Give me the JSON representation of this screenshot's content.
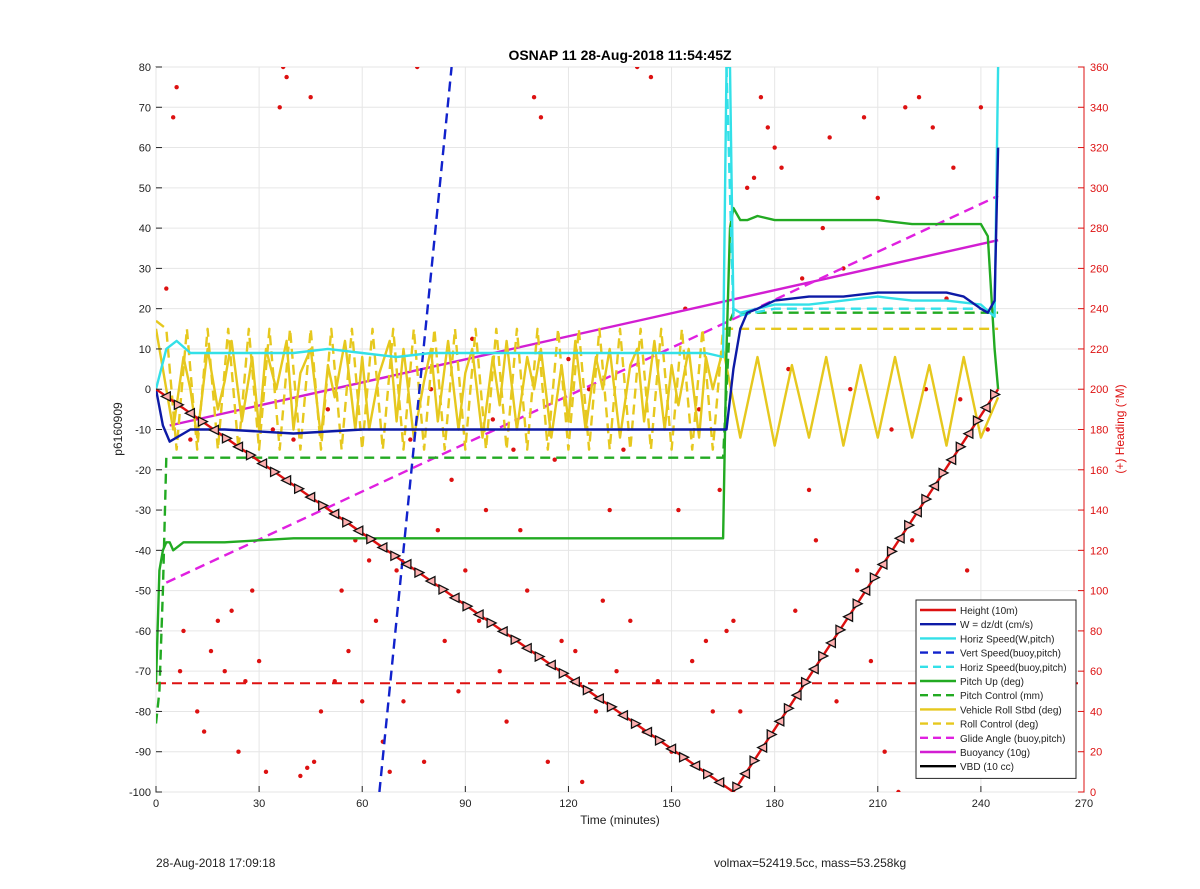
{
  "footer": {
    "left": "28-Aug-2018 17:09:18",
    "right": "volmax=52419.5cc, mass=53.258kg"
  },
  "chart_data": {
    "type": "line",
    "title": "OSNAP 11 28-Aug-2018 11:54:45Z",
    "xlabel": "Time (minutes)",
    "ylabel": "p6160909",
    "y2label": "(+) Heading (°M)",
    "xlim": [
      0,
      270
    ],
    "ylim": [
      -100,
      80
    ],
    "y2lim": [
      0,
      360
    ],
    "xticks": [
      0,
      30,
      60,
      90,
      120,
      150,
      180,
      210,
      240,
      270
    ],
    "yticks": [
      -100,
      -90,
      -80,
      -70,
      -60,
      -50,
      -40,
      -30,
      -20,
      -10,
      0,
      10,
      20,
      30,
      40,
      50,
      60,
      70,
      80
    ],
    "y2ticks": [
      0,
      20,
      40,
      60,
      80,
      100,
      120,
      140,
      160,
      180,
      200,
      220,
      240,
      260,
      280,
      300,
      320,
      340,
      360
    ],
    "grid": true,
    "legend_position": "bottom-right",
    "colors": {
      "height": "#dd1111",
      "w": "#0d1aa6",
      "horiz": "#33e0e8",
      "vert": "#1122cc",
      "pitch": "#22aa22",
      "roll": "#e6c81e",
      "glide": "#e020e0",
      "buoy": "#d21ed2",
      "vbd": "#000000",
      "heading": "#dd1111"
    },
    "series": [
      {
        "name": "Height (10m)",
        "key": "height",
        "style": "solid",
        "x": [
          0,
          168,
          245
        ],
        "y": [
          0,
          -100,
          0
        ]
      },
      {
        "name": "W = dz/dt (cm/s)",
        "key": "w",
        "style": "solid",
        "x": [
          0,
          2,
          4,
          6,
          10,
          20,
          40,
          60,
          80,
          100,
          120,
          140,
          160,
          166,
          168,
          170,
          172,
          175,
          180,
          190,
          200,
          210,
          220,
          230,
          235,
          240,
          242,
          244,
          245
        ],
        "y": [
          0,
          -9,
          -13,
          -12,
          -10,
          -10,
          -11,
          -10,
          -10,
          -10,
          -10,
          -10,
          -10,
          -10,
          5,
          15,
          19,
          20,
          22,
          23,
          23,
          24,
          24,
          24,
          23,
          20,
          19,
          22,
          60
        ]
      },
      {
        "name": "Horiz Speed(W,pitch)",
        "key": "horiz",
        "style": "solid",
        "x": [
          0,
          3,
          6,
          10,
          20,
          30,
          40,
          50,
          60,
          70,
          80,
          90,
          100,
          110,
          120,
          130,
          140,
          150,
          160,
          165,
          166,
          167,
          168,
          170,
          175,
          180,
          190,
          200,
          210,
          220,
          230,
          240,
          244,
          245
        ],
        "y": [
          0,
          10,
          12,
          9,
          9,
          9,
          9,
          10,
          9,
          8,
          9,
          9,
          9,
          9,
          9,
          9,
          9,
          9,
          9,
          8,
          80,
          80,
          20,
          19,
          20,
          21,
          21,
          22,
          23,
          22,
          22,
          21,
          18,
          80
        ]
      },
      {
        "name": "Vert Speed(buoy,pitch)",
        "key": "vert",
        "style": "dashed",
        "x": [
          65,
          86
        ],
        "y": [
          -100,
          80
        ]
      },
      {
        "name": "Horiz Speed(buoy,pitch)",
        "key": "horiz",
        "style": "dashed",
        "x": [
          166,
          168,
          180,
          200,
          220,
          240
        ],
        "y": [
          80,
          18,
          20,
          20,
          20,
          20
        ]
      },
      {
        "name": "Pitch Up (deg)",
        "key": "pitch",
        "style": "solid",
        "x": [
          0,
          1,
          2,
          3,
          4,
          5,
          8,
          20,
          40,
          60,
          80,
          100,
          120,
          140,
          160,
          165,
          166,
          167,
          168,
          170,
          172,
          175,
          180,
          190,
          200,
          210,
          220,
          230,
          240,
          242,
          244,
          245
        ],
        "y": [
          -73,
          -45,
          -40,
          -38,
          -38,
          -40,
          -38,
          -38,
          -37,
          -37,
          -37,
          -37,
          -37,
          -37,
          -37,
          -37,
          10,
          40,
          45,
          42,
          42,
          43,
          42,
          42,
          42,
          42,
          41,
          41,
          41,
          38,
          10,
          0
        ]
      },
      {
        "name": "Pitch Control (mm)",
        "key": "pitch",
        "style": "dashed",
        "x": [
          0,
          1,
          2,
          3,
          165,
          166,
          167,
          168,
          245
        ],
        "y": [
          -83,
          -75,
          -50,
          -17,
          -17,
          0,
          17,
          19,
          19
        ]
      },
      {
        "name": "Vehicle Roll Stbd (deg)",
        "key": "roll",
        "style": "solid",
        "x": [
          0,
          2,
          5,
          8,
          10,
          12,
          15,
          18,
          20,
          22,
          25,
          28,
          30,
          32,
          35,
          38,
          40,
          42,
          45,
          48,
          50,
          52,
          55,
          58,
          60,
          62,
          65,
          68,
          70,
          72,
          75,
          78,
          80,
          82,
          85,
          88,
          90,
          92,
          95,
          98,
          100,
          102,
          105,
          108,
          110,
          112,
          115,
          118,
          120,
          122,
          125,
          128,
          130,
          132,
          135,
          138,
          140,
          142,
          145,
          148,
          150,
          152,
          155,
          158,
          160,
          162,
          165,
          170,
          175,
          180,
          185,
          190,
          195,
          200,
          205,
          210,
          215,
          220,
          225,
          230,
          235,
          240,
          245
        ],
        "y": [
          15,
          5,
          -10,
          8,
          0,
          -12,
          10,
          -5,
          2,
          12,
          -8,
          8,
          -10,
          10,
          0,
          12,
          -10,
          4,
          10,
          -12,
          6,
          -2,
          12,
          -10,
          8,
          -10,
          4,
          12,
          -8,
          10,
          -12,
          2,
          10,
          -8,
          12,
          -10,
          4,
          10,
          -12,
          8,
          -4,
          12,
          -10,
          8,
          0,
          10,
          -12,
          6,
          -8,
          12,
          -10,
          8,
          0,
          10,
          -12,
          6,
          10,
          -8,
          12,
          -10,
          6,
          -4,
          10,
          -12,
          8,
          0,
          10,
          -12,
          8,
          -14,
          6,
          -12,
          8,
          -14,
          6,
          -12,
          8,
          -12,
          6,
          -14,
          8,
          -12,
          -2
        ]
      },
      {
        "name": "Roll Control (deg)",
        "key": "roll",
        "style": "dashed",
        "x": [
          0,
          3,
          6,
          9,
          12,
          15,
          18,
          21,
          24,
          27,
          30,
          33,
          36,
          39,
          42,
          45,
          48,
          51,
          54,
          57,
          60,
          63,
          66,
          69,
          72,
          75,
          78,
          81,
          84,
          87,
          90,
          93,
          96,
          99,
          102,
          105,
          108,
          111,
          114,
          117,
          120,
          123,
          126,
          129,
          132,
          135,
          138,
          141,
          144,
          147,
          150,
          153,
          156,
          159,
          162,
          165,
          245
        ],
        "y": [
          17,
          15,
          -15,
          15,
          -15,
          15,
          -15,
          15,
          -15,
          15,
          -15,
          15,
          -15,
          15,
          -15,
          15,
          -15,
          15,
          -15,
          15,
          -15,
          15,
          -15,
          15,
          -15,
          15,
          -15,
          15,
          -15,
          15,
          -15,
          15,
          -15,
          15,
          -15,
          15,
          -15,
          15,
          -15,
          15,
          -15,
          15,
          -15,
          15,
          -15,
          15,
          -15,
          15,
          -15,
          15,
          -15,
          15,
          -15,
          15,
          -15,
          15,
          15
        ]
      },
      {
        "name": "Glide Angle (buoy,pitch)",
        "key": "glide",
        "style": "dashed",
        "x": [
          3,
          245
        ],
        "y": [
          -48,
          48
        ]
      },
      {
        "name": "Buoyancy (10g)",
        "key": "buoy",
        "style": "solid",
        "x": [
          4,
          245
        ],
        "y": [
          -9,
          37
        ]
      },
      {
        "name": "VBD (10 cc)",
        "key": "vbd",
        "style": "solid",
        "x": [
          0,
          3,
          6,
          10,
          20,
          40,
          60,
          80,
          100,
          120,
          140,
          160,
          165,
          166,
          167,
          168,
          170,
          172,
          175,
          180,
          190,
          200,
          210,
          220,
          230,
          240,
          241,
          243,
          245
        ],
        "y": [
          -10,
          -10,
          -10,
          -10,
          -10,
          -10,
          -10,
          -10,
          -10,
          -10,
          -10,
          -10,
          -10,
          -5,
          5,
          10,
          17,
          22,
          23,
          24,
          25,
          25,
          25,
          25,
          25,
          25,
          27,
          30,
          32
        ]
      }
    ],
    "height_markers": {
      "down_every_x": 3.5,
      "up_every_x": 2.5
    },
    "reference_line": {
      "key": "height",
      "style": "dashed",
      "y": -73
    },
    "heading_points": {
      "axis": "y2",
      "color": "#dd1111",
      "x": [
        3,
        5,
        6,
        7,
        8,
        10,
        12,
        14,
        16,
        18,
        20,
        22,
        24,
        26,
        28,
        30,
        32,
        34,
        36,
        37,
        38,
        40,
        42,
        44,
        45,
        46,
        48,
        50,
        52,
        54,
        56,
        58,
        60,
        62,
        64,
        66,
        68,
        70,
        72,
        74,
        76,
        78,
        80,
        82,
        84,
        86,
        88,
        90,
        92,
        94,
        96,
        98,
        100,
        102,
        104,
        106,
        108,
        110,
        112,
        114,
        116,
        118,
        120,
        122,
        124,
        126,
        128,
        130,
        132,
        134,
        136,
        138,
        140,
        142,
        144,
        146,
        148,
        150,
        152,
        154,
        156,
        158,
        160,
        162,
        164,
        166,
        168,
        170,
        172,
        174,
        176,
        178,
        180,
        182,
        184,
        186,
        188,
        190,
        192,
        194,
        196,
        198,
        200,
        202,
        204,
        206,
        208,
        210,
        212,
        214,
        216,
        218,
        220,
        222,
        224,
        226,
        228,
        230,
        232,
        234,
        236,
        238,
        240,
        242
      ],
      "y": [
        250,
        335,
        350,
        60,
        80,
        175,
        40,
        30,
        70,
        85,
        60,
        90,
        20,
        55,
        100,
        65,
        10,
        180,
        340,
        360,
        355,
        175,
        8,
        12,
        345,
        15,
        40,
        190,
        55,
        100,
        70,
        125,
        45,
        115,
        85,
        25,
        10,
        110,
        45,
        175,
        360,
        15,
        200,
        130,
        75,
        155,
        50,
        110,
        225,
        85,
        140,
        185,
        60,
        35,
        170,
        130,
        100,
        345,
        335,
        15,
        165,
        75,
        215,
        70,
        5,
        200,
        40,
        95,
        140,
        60,
        170,
        85,
        360,
        30,
        355,
        55,
        185,
        20,
        140,
        240,
        65,
        190,
        75,
        40,
        150,
        80,
        85,
        40,
        300,
        305,
        345,
        330,
        320,
        310,
        210,
        90,
        255,
        150,
        125,
        280,
        325,
        45,
        260,
        200,
        110,
        335,
        65,
        295,
        20,
        180,
        0,
        340,
        125,
        345,
        200,
        330,
        75,
        245,
        310,
        195,
        110,
        30,
        340,
        180
      ]
    }
  }
}
